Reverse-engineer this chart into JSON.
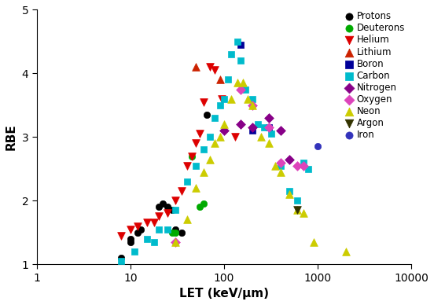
{
  "title": "",
  "xlabel": "LET (keV/μm)",
  "ylabel": "RBE",
  "xlim": [
    1,
    10000
  ],
  "ylim": [
    1,
    5
  ],
  "series": {
    "Protons": {
      "color": "#000000",
      "marker": "o",
      "markersize": 6,
      "points": [
        [
          8,
          1.1
        ],
        [
          10,
          1.35
        ],
        [
          10,
          1.4
        ],
        [
          12,
          1.5
        ],
        [
          13,
          1.55
        ],
        [
          20,
          1.9
        ],
        [
          22,
          1.95
        ],
        [
          25,
          1.9
        ],
        [
          28,
          1.85
        ],
        [
          30,
          1.55
        ],
        [
          35,
          1.5
        ],
        [
          65,
          3.35
        ]
      ]
    },
    "Deuterons": {
      "color": "#00aa00",
      "marker": "o",
      "markersize": 6,
      "points": [
        [
          28,
          1.5
        ],
        [
          30,
          1.5
        ],
        [
          45,
          2.7
        ],
        [
          55,
          1.9
        ],
        [
          60,
          1.95
        ]
      ]
    },
    "Helium": {
      "color": "#dd0000",
      "marker": "v",
      "markersize": 7,
      "points": [
        [
          8,
          1.45
        ],
        [
          10,
          1.55
        ],
        [
          12,
          1.6
        ],
        [
          15,
          1.65
        ],
        [
          18,
          1.65
        ],
        [
          20,
          1.75
        ],
        [
          25,
          1.8
        ],
        [
          30,
          2.0
        ],
        [
          35,
          2.15
        ],
        [
          40,
          2.55
        ],
        [
          45,
          2.7
        ],
        [
          50,
          2.9
        ],
        [
          55,
          3.05
        ],
        [
          60,
          3.55
        ],
        [
          70,
          4.1
        ],
        [
          80,
          4.05
        ],
        [
          95,
          3.6
        ],
        [
          130,
          3.0
        ]
      ]
    },
    "Lithium": {
      "color": "#cc2200",
      "marker": "^",
      "markersize": 7,
      "points": [
        [
          50,
          4.1
        ],
        [
          90,
          3.9
        ]
      ]
    },
    "Boron": {
      "color": "#000099",
      "marker": "s",
      "markersize": 6,
      "points": [
        [
          150,
          4.45
        ],
        [
          200,
          3.1
        ],
        [
          300,
          3.15
        ]
      ]
    },
    "Carbon": {
      "color": "#00bbcc",
      "marker": "s",
      "markersize": 6,
      "points": [
        [
          8,
          1.05
        ],
        [
          11,
          1.2
        ],
        [
          15,
          1.4
        ],
        [
          18,
          1.35
        ],
        [
          20,
          1.55
        ],
        [
          25,
          1.55
        ],
        [
          30,
          1.85
        ],
        [
          40,
          2.3
        ],
        [
          50,
          2.55
        ],
        [
          60,
          2.8
        ],
        [
          70,
          3.0
        ],
        [
          80,
          3.3
        ],
        [
          90,
          3.5
        ],
        [
          100,
          3.6
        ],
        [
          110,
          3.9
        ],
        [
          120,
          4.3
        ],
        [
          140,
          4.5
        ],
        [
          150,
          4.2
        ],
        [
          170,
          3.75
        ],
        [
          200,
          3.6
        ],
        [
          230,
          3.2
        ],
        [
          270,
          3.15
        ],
        [
          320,
          3.05
        ],
        [
          400,
          2.55
        ],
        [
          500,
          2.15
        ],
        [
          600,
          2.0
        ],
        [
          700,
          2.6
        ],
        [
          800,
          2.5
        ]
      ]
    },
    "Nitrogen": {
      "color": "#880088",
      "marker": "D",
      "markersize": 6,
      "points": [
        [
          100,
          3.1
        ],
        [
          150,
          3.2
        ],
        [
          200,
          3.15
        ],
        [
          300,
          3.3
        ],
        [
          400,
          3.1
        ],
        [
          500,
          2.65
        ]
      ]
    },
    "Oxygen": {
      "color": "#dd44bb",
      "marker": "D",
      "markersize": 6,
      "points": [
        [
          30,
          1.35
        ],
        [
          150,
          3.75
        ],
        [
          200,
          3.5
        ],
        [
          300,
          3.15
        ],
        [
          400,
          2.6
        ],
        [
          600,
          2.55
        ],
        [
          700,
          2.55
        ]
      ]
    },
    "Neon": {
      "color": "#cccc00",
      "marker": "^",
      "markersize": 7,
      "points": [
        [
          30,
          1.35
        ],
        [
          40,
          1.7
        ],
        [
          50,
          2.2
        ],
        [
          60,
          2.45
        ],
        [
          70,
          2.65
        ],
        [
          80,
          2.9
        ],
        [
          90,
          3.0
        ],
        [
          100,
          3.2
        ],
        [
          120,
          3.6
        ],
        [
          140,
          3.85
        ],
        [
          160,
          3.85
        ],
        [
          180,
          3.6
        ],
        [
          200,
          3.5
        ],
        [
          250,
          3.0
        ],
        [
          300,
          2.9
        ],
        [
          350,
          2.55
        ],
        [
          400,
          2.45
        ],
        [
          500,
          2.1
        ],
        [
          600,
          1.85
        ],
        [
          700,
          1.8
        ],
        [
          900,
          1.35
        ],
        [
          2000,
          1.2
        ]
      ]
    },
    "Argon": {
      "color": "#333300",
      "marker": "v",
      "markersize": 7,
      "points": [
        [
          600,
          1.85
        ]
      ]
    },
    "Iron": {
      "color": "#3333bb",
      "marker": "o",
      "markersize": 6,
      "points": [
        [
          1000,
          2.85
        ]
      ]
    }
  }
}
